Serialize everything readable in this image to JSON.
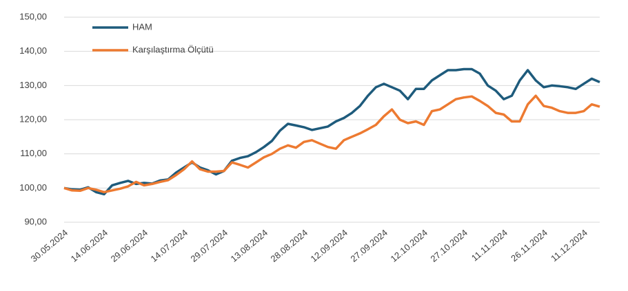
{
  "chart_data": {
    "type": "line",
    "categories": [
      "30.05.2024",
      null,
      null,
      null,
      null,
      "14.06.2024",
      null,
      null,
      null,
      null,
      "29.06.2024",
      null,
      null,
      null,
      null,
      "14.07.2024",
      null,
      null,
      null,
      null,
      "29.07.2024",
      null,
      null,
      null,
      null,
      "13.08.2024",
      null,
      null,
      null,
      null,
      "28.08.2024",
      null,
      null,
      null,
      null,
      "12.09.2024",
      null,
      null,
      null,
      null,
      "27.09.2024",
      null,
      null,
      null,
      null,
      "12.10.2024",
      null,
      null,
      null,
      null,
      "27.10.2024",
      null,
      null,
      null,
      null,
      "11.11.2024",
      null,
      null,
      null,
      null,
      "26.11.2024",
      null,
      null,
      null,
      null,
      "11.12.2024",
      null,
      null
    ],
    "series": [
      {
        "name": "HAM",
        "color": "#1e5b7c",
        "values": [
          100,
          99.6,
          99.5,
          100.2,
          98.8,
          98.2,
          100.8,
          101.5,
          102.1,
          101.2,
          101.5,
          101.3,
          102.2,
          102.5,
          104.5,
          106,
          107.5,
          106,
          105.2,
          104,
          105,
          108,
          108.8,
          109.3,
          110.5,
          112,
          113.8,
          116.8,
          118.8,
          118.3,
          117.8,
          117,
          117.5,
          118,
          119.5,
          120.5,
          122,
          124,
          127,
          129.5,
          130.5,
          129.5,
          128.5,
          126,
          129,
          129,
          131.5,
          133,
          134.5,
          134.5,
          134.8,
          134.8,
          133.5,
          130,
          128.5,
          126,
          127,
          131.5,
          134.5,
          131.5,
          129.5,
          130,
          129.8,
          129.5,
          129,
          130.5,
          132,
          131
        ]
      },
      {
        "name": "Karşılaştırma Ölçütü",
        "color": "#ed7a31",
        "values": [
          100,
          99.3,
          99.2,
          100,
          99.5,
          98.8,
          99.3,
          99.8,
          100.5,
          101.8,
          100.8,
          101.2,
          101.8,
          102.3,
          103.8,
          105.5,
          107.8,
          105.5,
          104.8,
          104.8,
          105,
          107.5,
          106.8,
          106,
          107.5,
          109,
          110,
          111.5,
          112.5,
          111.8,
          113.5,
          114,
          113,
          112,
          111.5,
          114,
          115,
          116,
          117.2,
          118.5,
          121,
          123,
          120,
          119,
          119.5,
          118.5,
          122.5,
          123,
          124.5,
          126,
          126.5,
          126.8,
          125.5,
          124,
          122,
          121.5,
          119.5,
          119.5,
          124.5,
          127,
          124,
          123.5,
          122.5,
          122,
          122,
          122.5,
          124.5,
          123.8
        ]
      }
    ],
    "ylim": [
      90,
      150
    ],
    "yticks": [
      {
        "value": 90,
        "label": "90,00"
      },
      {
        "value": 100,
        "label": "100,00"
      },
      {
        "value": 110,
        "label": "110,00"
      },
      {
        "value": 120,
        "label": "120,00"
      },
      {
        "value": 130,
        "label": "130,00"
      },
      {
        "value": 140,
        "label": "140,00"
      },
      {
        "value": 150,
        "label": "150,00"
      }
    ],
    "grid": true,
    "legend": "top-left"
  }
}
